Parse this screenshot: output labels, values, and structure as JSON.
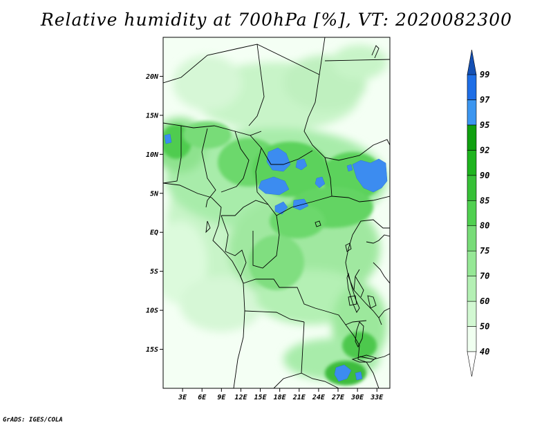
{
  "title": "Relative humidity at 700hPa [%], VT: 2020082300",
  "credit": "GrADS: IGES/COLA",
  "map": {
    "region": "Central Africa",
    "lat_range": [
      -20,
      25
    ],
    "lon_range": [
      0,
      35
    ],
    "lat_ticks": [
      {
        "value": 20,
        "label": "20N"
      },
      {
        "value": 15,
        "label": "15N"
      },
      {
        "value": 10,
        "label": "10N"
      },
      {
        "value": 5,
        "label": "5N"
      },
      {
        "value": 0,
        "label": "EQ"
      },
      {
        "value": -5,
        "label": "5S"
      },
      {
        "value": -10,
        "label": "10S"
      },
      {
        "value": -15,
        "label": "15S"
      }
    ],
    "lon_ticks": [
      {
        "value": 3,
        "label": "3E"
      },
      {
        "value": 6,
        "label": "6E"
      },
      {
        "value": 9,
        "label": "9E"
      },
      {
        "value": 12,
        "label": "12E"
      },
      {
        "value": 15,
        "label": "15E"
      },
      {
        "value": 18,
        "label": "18E"
      },
      {
        "value": 21,
        "label": "21E"
      },
      {
        "value": 24,
        "label": "24E"
      },
      {
        "value": 27,
        "label": "27E"
      },
      {
        "value": 30,
        "label": "30E"
      },
      {
        "value": 33,
        "label": "33E"
      }
    ]
  },
  "colorbar": {
    "levels": [
      {
        "label": "40",
        "color": "#f0fff0"
      },
      {
        "label": "50",
        "color": "#d2f8d2"
      },
      {
        "label": "60",
        "color": "#b4f0b4"
      },
      {
        "label": "70",
        "color": "#96e896"
      },
      {
        "label": "75",
        "color": "#78dc78"
      },
      {
        "label": "80",
        "color": "#50d050"
      },
      {
        "label": "85",
        "color": "#37c037"
      },
      {
        "label": "90",
        "color": "#1eb41e"
      },
      {
        "label": "92",
        "color": "#0fa00f"
      },
      {
        "label": "95",
        "color": "#3c96f0"
      },
      {
        "label": "97",
        "color": "#1e6ee6"
      },
      {
        "label": "99",
        "color": ""
      }
    ],
    "top_color": "#1450b4",
    "bottom_color": "#ffffff"
  }
}
